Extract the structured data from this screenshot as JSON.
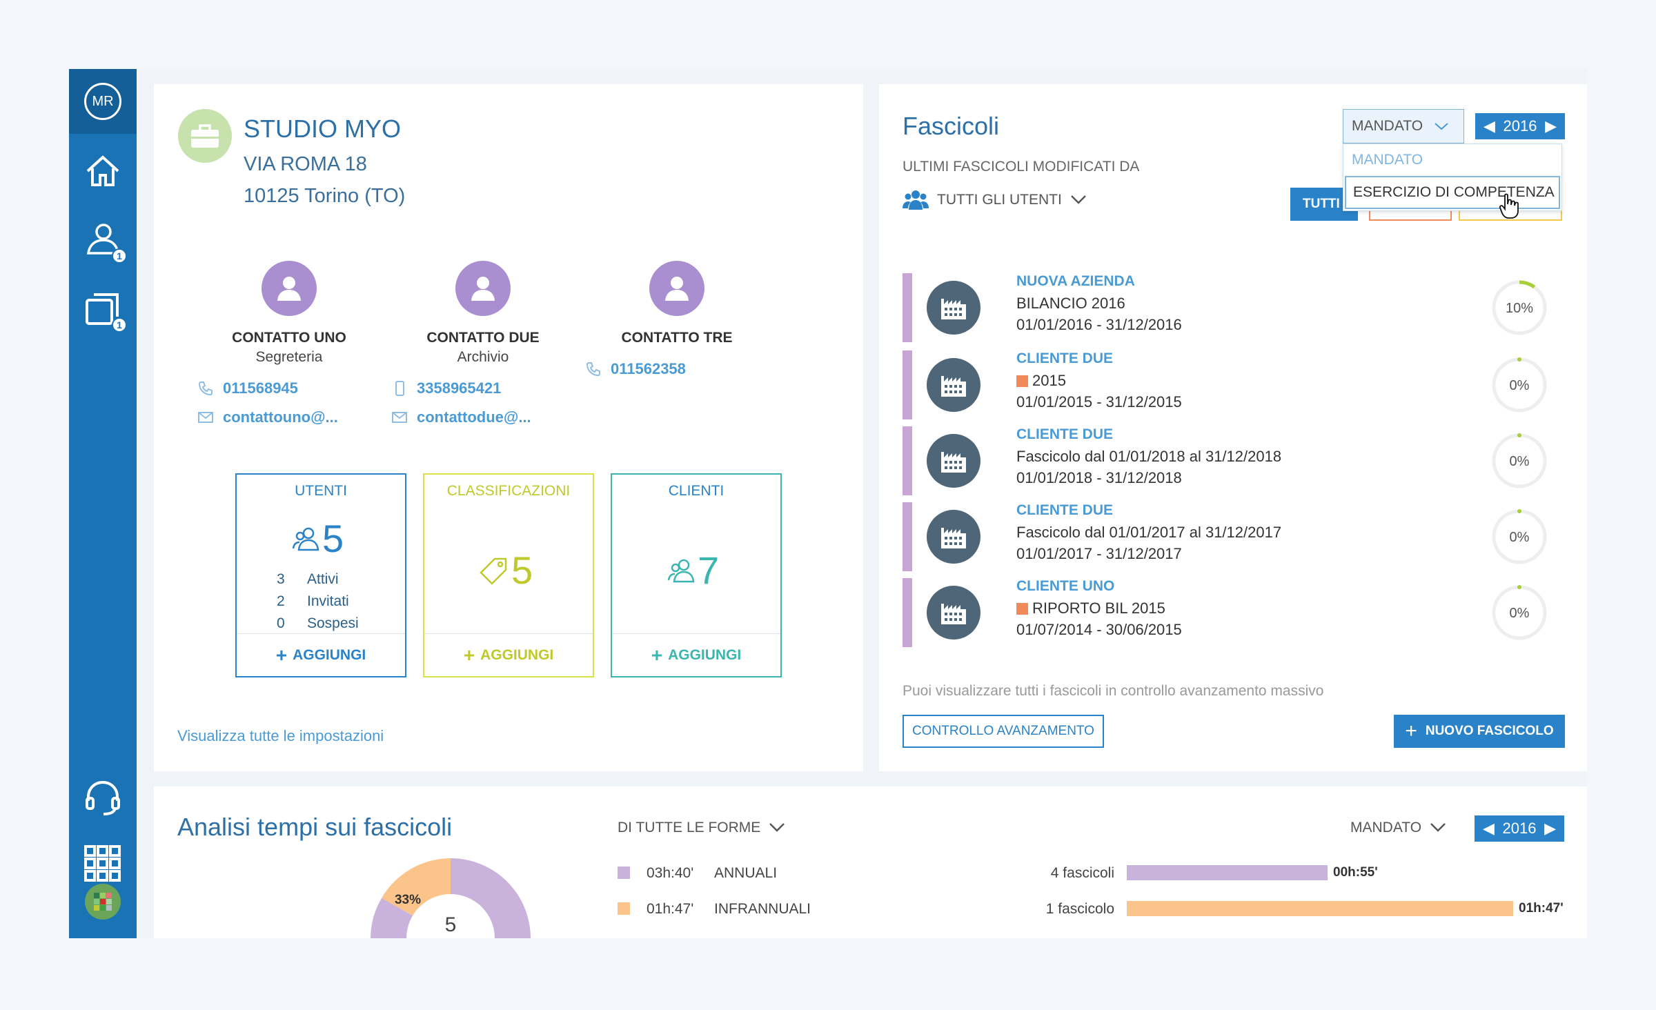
{
  "user": {
    "initials": "MR"
  },
  "sidebar": {
    "items": [
      {
        "icon": "home-icon"
      },
      {
        "icon": "users-icon",
        "badge": "1"
      },
      {
        "icon": "windows-icon",
        "badge": "1"
      },
      {
        "icon": "headset-icon"
      },
      {
        "icon": "apps-grid-icon"
      },
      {
        "icon": "brand-logo-icon"
      }
    ]
  },
  "studio": {
    "name": "STUDIO MYO",
    "address_line1": "VIA ROMA 18",
    "address_line2": "10125 Torino (TO)",
    "contacts": [
      {
        "name": "CONTATTO UNO",
        "role": "Segreteria",
        "phone": "011568945",
        "email": "contattouno@..."
      },
      {
        "name": "CONTATTO DUE",
        "role": "Archivio",
        "phone": "3358965421",
        "email": "contattodue@..."
      },
      {
        "name": "CONTATTO TRE",
        "role": "",
        "phone": "011562358",
        "email": ""
      }
    ],
    "boxes": {
      "utenti": {
        "title": "UTENTI",
        "count": "5",
        "stats": [
          {
            "n": "3",
            "label": "Attivi"
          },
          {
            "n": "2",
            "label": "Invitati"
          },
          {
            "n": "0",
            "label": "Sospesi"
          }
        ],
        "add": "AGGIUNGI",
        "color": "#2a83c8"
      },
      "classificazioni": {
        "title": "CLASSIFICAZIONI",
        "count": "5",
        "add": "AGGIUNGI",
        "color": "#c8d53a"
      },
      "clienti": {
        "title": "CLIENTI",
        "count": "7",
        "add": "AGGIUNGI",
        "color": "#3bb5b0"
      }
    },
    "settings_link": "Visualizza tutte le impostazioni"
  },
  "fascicoli": {
    "title": "Fascicoli",
    "subtitle": "ULTIMI FASCICOLI MODIFICATI DA",
    "users_filter": "TUTTI GLI UTENTI",
    "type_select": "MANDATO",
    "type_options": [
      "MANDATO",
      "ESERCIZIO DI COMPETENZA"
    ],
    "year": "2016",
    "tab_all": "TUTTI",
    "items": [
      {
        "client": "NUOVA AZIENDA",
        "desc": "BILANCIO 2016",
        "flag": false,
        "period": "01/01/2016 - 31/12/2016",
        "progress": "10%",
        "progress_value": 0.1
      },
      {
        "client": "CLIENTE DUE",
        "desc": "2015",
        "flag": true,
        "period": "01/01/2015 - 31/12/2015",
        "progress": "0%",
        "progress_value": 0
      },
      {
        "client": "CLIENTE DUE",
        "desc": "Fascicolo dal 01/01/2018 al 31/12/2018",
        "flag": false,
        "period": "01/01/2018 - 31/12/2018",
        "progress": "0%",
        "progress_value": 0
      },
      {
        "client": "CLIENTE DUE",
        "desc": "Fascicolo dal 01/01/2017 al 31/12/2017",
        "flag": false,
        "period": "01/01/2017 - 31/12/2017",
        "progress": "0%",
        "progress_value": 0
      },
      {
        "client": "CLIENTE UNO",
        "desc": "RIPORTO BIL 2015",
        "flag": true,
        "period": "01/07/2014 - 30/06/2015",
        "progress": "0%",
        "progress_value": 0
      }
    ],
    "hint": "Puoi visualizzare tutti i fascicoli in controllo avanzamento massivo",
    "controllo_button": "CONTROLLO AVANZAMENTO",
    "nuovo_button": "NUOVO FASCICOLO"
  },
  "analisi": {
    "title": "Analisi tempi sui fascicoli",
    "forms_filter": "DI TUTTE LE FORME",
    "type_select": "MANDATO",
    "year": "2016",
    "donut_center": "5",
    "donut_label": "33%",
    "rows": [
      {
        "time": "03h:40'",
        "label": "ANNUALI",
        "count": "4 fascicoli",
        "avg": "00h:55'",
        "color": "#c9b3dc",
        "bar_fraction": 0.52
      },
      {
        "time": "01h:47'",
        "label": "INFRANNUALI",
        "count": "1 fascicolo",
        "avg": "01h:47'",
        "color": "#fbc48a",
        "bar_fraction": 1.0
      }
    ]
  }
}
